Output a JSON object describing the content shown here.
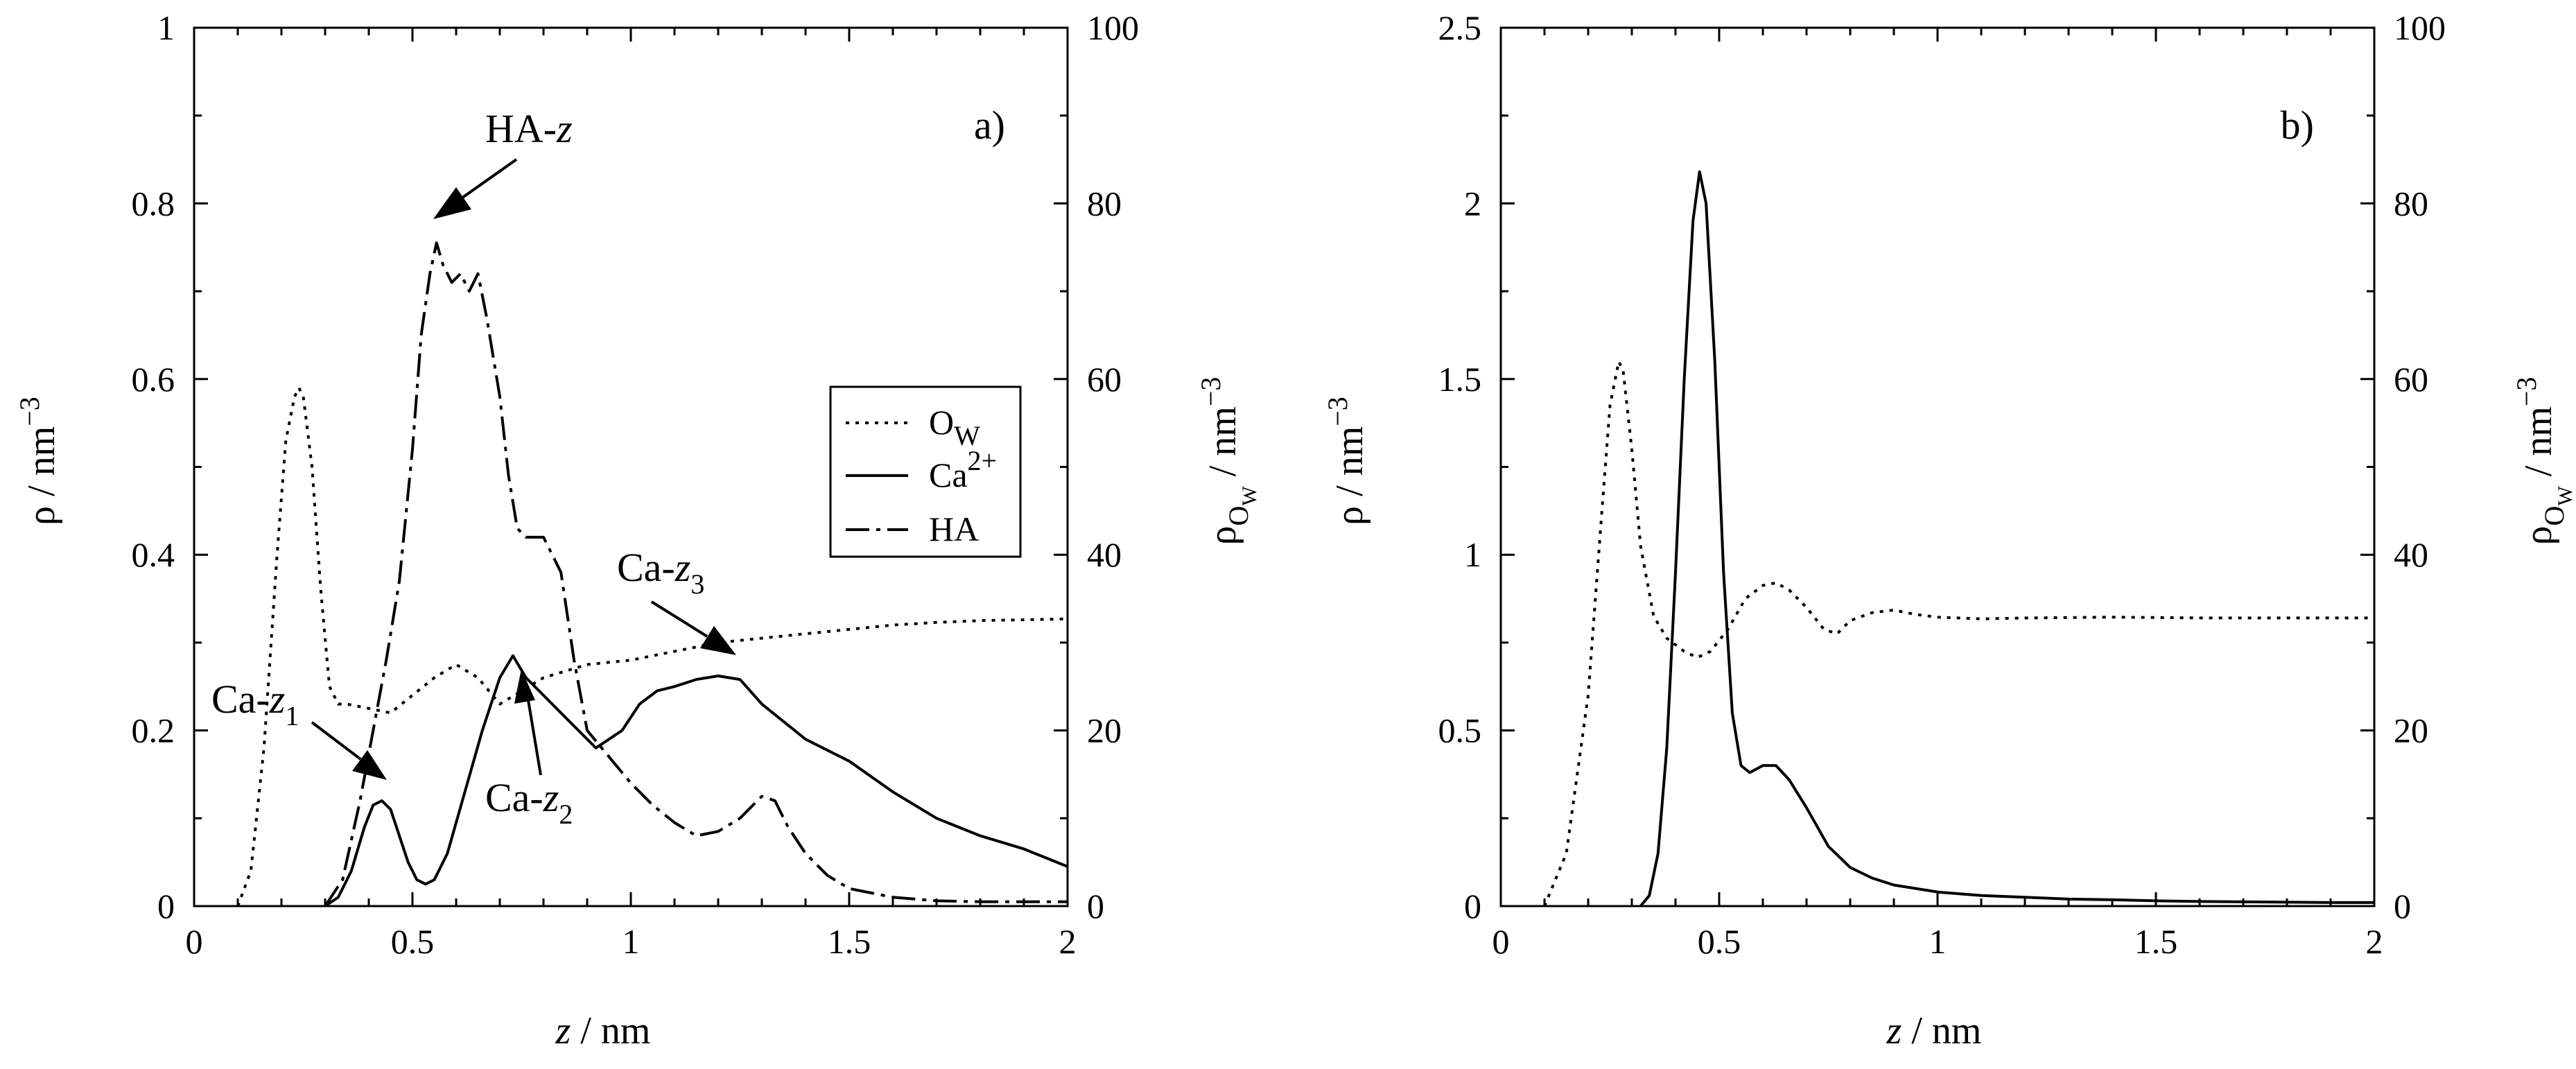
{
  "chart_data": [
    {
      "panel": "a)",
      "type": "line",
      "xlabel": "z / nm",
      "ylabel": "ρ / nm⁻³",
      "y2label": "ρOW / nm⁻³",
      "xlim": [
        0,
        2
      ],
      "ylim": [
        0,
        1
      ],
      "y2lim": [
        0,
        100
      ],
      "xticks": [
        "0",
        "0.5",
        "1",
        "1.5",
        "2"
      ],
      "yticks": [
        "0",
        "0.2",
        "0.4",
        "0.6",
        "0.8",
        "1"
      ],
      "y2ticks": [
        "0",
        "20",
        "40",
        "60",
        "80",
        "100"
      ],
      "legend": {
        "position": "center-right",
        "entries": [
          {
            "main": "O",
            "sub": "W",
            "sup": ""
          },
          {
            "main": "Ca",
            "sub": "",
            "sup": "2+"
          },
          {
            "main": "HA",
            "sub": "",
            "sup": ""
          }
        ]
      },
      "annotations": [
        {
          "label": "HA-",
          "italic": "z",
          "sub": "",
          "x": 0.55,
          "y": 0.78
        },
        {
          "label": "Ca-",
          "italic": "z",
          "sub": "1",
          "x": 0.44,
          "y": 0.14
        },
        {
          "label": "Ca-",
          "italic": "z",
          "sub": "2",
          "x": 0.74,
          "y": 0.26
        },
        {
          "label": "Ca-",
          "italic": "z",
          "sub": "3",
          "x": 1.2,
          "y": 0.29
        }
      ],
      "series": [
        {
          "name": "Ow",
          "axis": "y2",
          "dash": "dotted",
          "x": [
            0.1,
            0.13,
            0.16,
            0.19,
            0.21,
            0.23,
            0.24,
            0.25,
            0.27,
            0.29,
            0.31,
            0.33,
            0.35,
            0.4,
            0.45,
            0.5,
            0.55,
            0.6,
            0.65,
            0.7,
            0.75,
            0.8,
            0.9,
            1.0,
            1.1,
            1.2,
            1.3,
            1.4,
            1.5,
            1.6,
            1.7,
            1.8,
            1.9,
            2.0
          ],
          "y": [
            0,
            4,
            18,
            40,
            53,
            58,
            59,
            58,
            50,
            36,
            25,
            23,
            23,
            22.5,
            22,
            24,
            26,
            27.5,
            26,
            23,
            24.5,
            26,
            27.5,
            28,
            29,
            30,
            30.5,
            31,
            31.5,
            32,
            32.3,
            32.5,
            32.6,
            32.7
          ]
        },
        {
          "name": "Ca2+",
          "axis": "y",
          "dash": "solid",
          "x": [
            0.3,
            0.33,
            0.36,
            0.39,
            0.41,
            0.43,
            0.45,
            0.47,
            0.49,
            0.51,
            0.53,
            0.55,
            0.58,
            0.62,
            0.66,
            0.7,
            0.73,
            0.76,
            0.8,
            0.84,
            0.88,
            0.92,
            0.95,
            0.98,
            1.02,
            1.06,
            1.1,
            1.15,
            1.2,
            1.25,
            1.3,
            1.35,
            1.4,
            1.5,
            1.6,
            1.7,
            1.8,
            1.9,
            2.0
          ],
          "y": [
            0,
            0.01,
            0.04,
            0.09,
            0.115,
            0.12,
            0.11,
            0.08,
            0.05,
            0.03,
            0.025,
            0.03,
            0.06,
            0.13,
            0.2,
            0.26,
            0.285,
            0.26,
            0.24,
            0.22,
            0.2,
            0.18,
            0.19,
            0.2,
            0.23,
            0.245,
            0.25,
            0.258,
            0.262,
            0.258,
            0.23,
            0.21,
            0.19,
            0.165,
            0.13,
            0.1,
            0.08,
            0.065,
            0.045
          ]
        },
        {
          "name": "HA",
          "axis": "y",
          "dash": "dash-dot",
          "x": [
            0.3,
            0.34,
            0.38,
            0.41,
            0.44,
            0.47,
            0.5,
            0.52,
            0.54,
            0.555,
            0.57,
            0.59,
            0.61,
            0.63,
            0.65,
            0.67,
            0.7,
            0.72,
            0.74,
            0.76,
            0.8,
            0.84,
            0.87,
            0.9,
            0.95,
            1.0,
            1.05,
            1.1,
            1.15,
            1.2,
            1.25,
            1.3,
            1.33,
            1.36,
            1.4,
            1.45,
            1.5,
            1.6,
            1.7,
            1.8,
            1.9,
            2.0
          ],
          "y": [
            0,
            0.03,
            0.12,
            0.2,
            0.28,
            0.37,
            0.52,
            0.65,
            0.72,
            0.755,
            0.73,
            0.71,
            0.72,
            0.7,
            0.72,
            0.67,
            0.58,
            0.49,
            0.43,
            0.42,
            0.42,
            0.38,
            0.28,
            0.2,
            0.17,
            0.14,
            0.115,
            0.095,
            0.08,
            0.085,
            0.1,
            0.125,
            0.12,
            0.09,
            0.06,
            0.035,
            0.02,
            0.01,
            0.006,
            0.005,
            0.005,
            0.005
          ]
        }
      ]
    },
    {
      "panel": "b)",
      "type": "line",
      "xlabel": "z / nm",
      "ylabel": "ρ / nm⁻³",
      "y2label": "ρOW / nm⁻³",
      "xlim": [
        0,
        2
      ],
      "ylim": [
        0,
        2.5
      ],
      "y2lim": [
        0,
        100
      ],
      "xticks": [
        "0",
        "0.5",
        "1",
        "1.5",
        "2"
      ],
      "yticks": [
        "0",
        "0.5",
        "1",
        "1.5",
        "2",
        "2.5"
      ],
      "y2ticks": [
        "0",
        "20",
        "40",
        "60",
        "80",
        "100"
      ],
      "series": [
        {
          "name": "Ow",
          "axis": "y2",
          "dash": "dotted",
          "x": [
            0.1,
            0.15,
            0.2,
            0.23,
            0.25,
            0.27,
            0.28,
            0.3,
            0.32,
            0.35,
            0.38,
            0.42,
            0.45,
            0.48,
            0.52,
            0.56,
            0.6,
            0.63,
            0.66,
            0.7,
            0.74,
            0.77,
            0.8,
            0.85,
            0.9,
            0.95,
            1.0,
            1.1,
            1.2,
            1.4,
            1.6,
            1.8,
            2.0
          ],
          "y": [
            0,
            6,
            24,
            44,
            57,
            62,
            61,
            52,
            41,
            33,
            30.5,
            29,
            28.3,
            29,
            31.5,
            35,
            36.5,
            36.8,
            36,
            34,
            31.5,
            31,
            32.5,
            33.4,
            33.7,
            33.2,
            32.9,
            32.7,
            32.8,
            32.9,
            32.8,
            32.8,
            32.8
          ]
        },
        {
          "name": "Ca2+",
          "axis": "y",
          "dash": "solid",
          "x": [
            0.32,
            0.34,
            0.36,
            0.38,
            0.4,
            0.42,
            0.44,
            0.455,
            0.47,
            0.49,
            0.51,
            0.53,
            0.55,
            0.57,
            0.6,
            0.63,
            0.66,
            0.7,
            0.75,
            0.8,
            0.85,
            0.9,
            1.0,
            1.1,
            1.2,
            1.3,
            1.4,
            1.5,
            1.6,
            1.7,
            1.8,
            1.9,
            2.0
          ],
          "y": [
            0,
            0.03,
            0.15,
            0.45,
            0.95,
            1.5,
            1.95,
            2.09,
            2.0,
            1.55,
            0.95,
            0.55,
            0.4,
            0.38,
            0.4,
            0.4,
            0.36,
            0.28,
            0.17,
            0.11,
            0.08,
            0.06,
            0.04,
            0.03,
            0.025,
            0.02,
            0.018,
            0.015,
            0.013,
            0.012,
            0.011,
            0.01,
            0.01
          ]
        }
      ]
    }
  ]
}
